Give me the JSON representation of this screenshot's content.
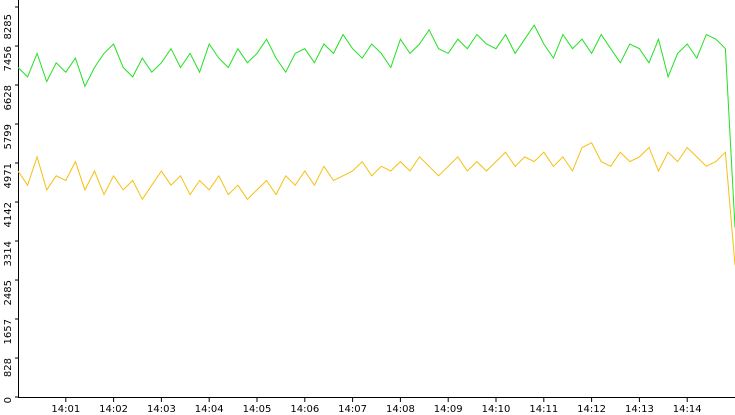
{
  "chart_data": {
    "type": "line",
    "x": [
      840.0,
      840.2,
      840.4,
      840.6,
      840.8,
      841.0,
      841.2,
      841.4,
      841.6,
      841.8,
      842.0,
      842.2,
      842.4,
      842.6,
      842.8,
      843.0,
      843.2,
      843.4,
      843.6,
      843.8,
      844.0,
      844.2,
      844.4,
      844.6,
      844.8,
      845.0,
      845.2,
      845.4,
      845.6,
      845.8,
      846.0,
      846.2,
      846.4,
      846.6,
      846.8,
      847.0,
      847.2,
      847.4,
      847.6,
      847.8,
      848.0,
      848.2,
      848.4,
      848.6,
      848.8,
      849.0,
      849.2,
      849.4,
      849.6,
      849.8,
      850.0,
      850.2,
      850.4,
      850.6,
      850.8,
      851.0,
      851.2,
      851.4,
      851.6,
      851.8,
      852.0,
      852.2,
      852.4,
      852.6,
      852.8,
      853.0,
      853.2,
      853.4,
      853.6,
      853.8,
      854.0,
      854.2,
      854.4,
      854.6,
      854.8,
      855.0
    ],
    "series": [
      {
        "color": "#22e022",
        "values": [
          7000,
          6800,
          7300,
          6700,
          7100,
          6900,
          7200,
          6600,
          7000,
          7300,
          7500,
          7000,
          6800,
          7200,
          6900,
          7100,
          7400,
          7000,
          7300,
          6900,
          7500,
          7200,
          7000,
          7400,
          7100,
          7300,
          7600,
          7200,
          6900,
          7300,
          7400,
          7100,
          7500,
          7300,
          7700,
          7400,
          7200,
          7500,
          7300,
          7000,
          7600,
          7300,
          7500,
          7800,
          7400,
          7300,
          7600,
          7400,
          7700,
          7500,
          7400,
          7700,
          7300,
          7600,
          7900,
          7500,
          7200,
          7700,
          7400,
          7600,
          7300,
          7700,
          7400,
          7100,
          7500,
          7400,
          7100,
          7600,
          6800,
          7300,
          7500,
          7200,
          7700,
          7600,
          7400,
          3600
        ]
      },
      {
        "color": "#f5c011",
        "values": [
          4800,
          4500,
          5100,
          4400,
          4700,
          4600,
          5000,
          4400,
          4800,
          4300,
          4700,
          4400,
          4600,
          4200,
          4500,
          4800,
          4500,
          4700,
          4300,
          4600,
          4400,
          4700,
          4300,
          4500,
          4200,
          4400,
          4600,
          4300,
          4700,
          4500,
          4800,
          4500,
          4900,
          4600,
          4700,
          4800,
          5000,
          4700,
          4900,
          4800,
          5000,
          4800,
          5100,
          4900,
          4700,
          4900,
          5100,
          4800,
          5000,
          4800,
          5000,
          5200,
          4900,
          5100,
          5000,
          5200,
          4900,
          5100,
          4800,
          5300,
          5400,
          5000,
          4900,
          5200,
          5000,
          5100,
          5300,
          4800,
          5200,
          5000,
          5300,
          5100,
          4900,
          5000,
          5200,
          2800
        ]
      }
    ],
    "xlim": [
      840,
      855
    ],
    "xticks": [
      {
        "value": 841,
        "label": "14:01"
      },
      {
        "value": 842,
        "label": "14:02"
      },
      {
        "value": 843,
        "label": "14:03"
      },
      {
        "value": 844,
        "label": "14:04"
      },
      {
        "value": 845,
        "label": "14:05"
      },
      {
        "value": 846,
        "label": "14:06"
      },
      {
        "value": 847,
        "label": "14:07"
      },
      {
        "value": 848,
        "label": "14:08"
      },
      {
        "value": 849,
        "label": "14:09"
      },
      {
        "value": 850,
        "label": "14:10"
      },
      {
        "value": 851,
        "label": "14:11"
      },
      {
        "value": 852,
        "label": "14:12"
      },
      {
        "value": 853,
        "label": "14:13"
      },
      {
        "value": 854,
        "label": "14:14"
      }
    ],
    "ylim": [
      0,
      8285
    ],
    "yticks": [
      0,
      828,
      1657,
      2485,
      3314,
      4142,
      4971,
      5799,
      6628,
      7456,
      8285
    ],
    "grid": false
  }
}
